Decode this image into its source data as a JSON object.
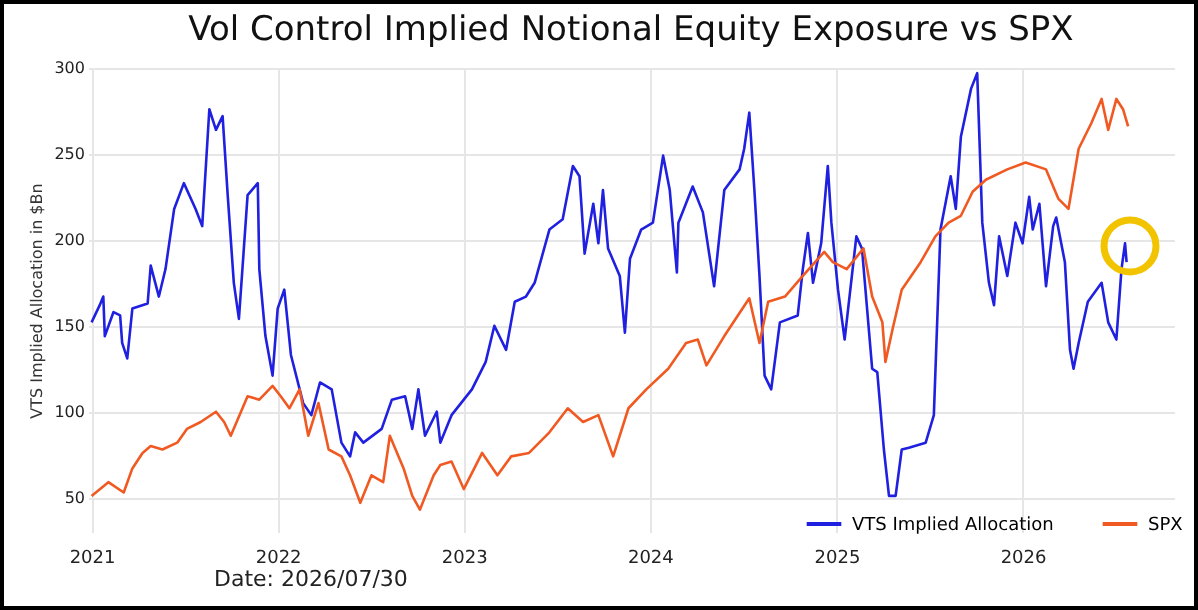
{
  "chart_data": {
    "type": "line",
    "title": "Vol Control Implied Notional Equity Exposure vs SPX",
    "ylabel": "VTS Implied Allocation in $Bn",
    "annotations": [
      "Date: 2026/07/30"
    ],
    "xlim": [
      "2020-12-25",
      "2026-10-25"
    ],
    "xticks": [
      "2021",
      "2022",
      "2023",
      "2024",
      "2025",
      "2026"
    ],
    "ylim": [
      30,
      300
    ],
    "yticks": [
      50,
      100,
      150,
      200,
      250,
      300
    ],
    "grid": true,
    "legend": "bottom right",
    "line_style": "solid",
    "marker": "none",
    "series": [
      {
        "name": "VTS Implied Allocation",
        "color": "#2020e0",
        "x": [
          "2021-01-01",
          "2021-01-17",
          "2021-01-24",
          "2021-01-27",
          "2021-02-13",
          "2021-02-26",
          "2021-03-02",
          "2021-03-12",
          "2021-03-22",
          "2021-04-21",
          "2021-04-27",
          "2021-05-13",
          "2021-05-26",
          "2021-06-12",
          "2021-07-01",
          "2021-07-24",
          "2021-08-06",
          "2021-08-20",
          "2021-09-02",
          "2021-09-15",
          "2021-09-25",
          "2021-10-07",
          "2021-10-17",
          "2021-11-03",
          "2021-11-23",
          "2021-11-26",
          "2021-12-08",
          "2021-12-22",
          "2022-01-01",
          "2022-01-14",
          "2022-01-27",
          "2022-02-20",
          "2022-03-08",
          "2022-03-25",
          "2022-04-17",
          "2022-05-06",
          "2022-05-23",
          "2022-06-02",
          "2022-06-18",
          "2022-07-24",
          "2022-08-13",
          "2022-09-08",
          "2022-09-22",
          "2022-10-04",
          "2022-10-17",
          "2022-11-09",
          "2022-11-16",
          "2022-12-08",
          "2023-01-17",
          "2023-02-13",
          "2023-03-02",
          "2023-03-25",
          "2023-04-11",
          "2023-05-03",
          "2023-05-20",
          "2023-06-18",
          "2023-07-14",
          "2023-08-03",
          "2023-08-16",
          "2023-08-26",
          "2023-09-12",
          "2023-09-22",
          "2023-10-01",
          "2023-10-11",
          "2023-11-03",
          "2023-11-13",
          "2023-11-23",
          "2023-12-15",
          "2024-01-07",
          "2024-01-27",
          "2024-02-09",
          "2024-02-23",
          "2024-02-26",
          "2024-03-25",
          "2024-04-14",
          "2024-05-06",
          "2024-05-26",
          "2024-06-25",
          "2024-07-04",
          "2024-07-14",
          "2024-07-24",
          "2024-08-03",
          "2024-08-13",
          "2024-08-26",
          "2024-09-12",
          "2024-10-17",
          "2024-10-27",
          "2024-11-06",
          "2024-11-16",
          "2024-12-02",
          "2024-12-15",
          "2024-12-22",
          "2025-01-04",
          "2025-01-17",
          "2025-02-09",
          "2025-02-20",
          "2025-03-12",
          "2025-03-22",
          "2025-04-04",
          "2025-04-14",
          "2025-04-27",
          "2025-05-09",
          "2025-05-23",
          "2025-06-25",
          "2025-07-11",
          "2025-07-24",
          "2025-08-13",
          "2025-08-23",
          "2025-09-02",
          "2025-09-22",
          "2025-10-04",
          "2025-10-14",
          "2025-10-27",
          "2025-11-06",
          "2025-11-16",
          "2025-12-02",
          "2025-12-18",
          "2026-01-01",
          "2026-01-14",
          "2026-01-21",
          "2026-02-03",
          "2026-02-16",
          "2026-03-02",
          "2026-03-08",
          "2026-03-25",
          "2026-04-04",
          "2026-04-11",
          "2026-04-21",
          "2026-05-09",
          "2026-06-05",
          "2026-06-18",
          "2026-07-04",
          "2026-07-14",
          "2026-07-21",
          "2026-07-24"
        ],
        "values": [
          152,
          162,
          167,
          144,
          158,
          156,
          140,
          131,
          160,
          163,
          185,
          167,
          183,
          218,
          233,
          218,
          208,
          276,
          264,
          272,
          226,
          175,
          154,
          226,
          233,
          183,
          144,
          121,
          160,
          171,
          133,
          105,
          98,
          117,
          113,
          82,
          74,
          88,
          82,
          90,
          107,
          109,
          90,
          113,
          86,
          100,
          82,
          98,
          113,
          129,
          150,
          136,
          164,
          167,
          175,
          206,
          212,
          243,
          237,
          192,
          221,
          198,
          229,
          195,
          179,
          146,
          189,
          206,
          210,
          249,
          229,
          181,
          210,
          231,
          216,
          173,
          229,
          241,
          253,
          274,
          229,
          179,
          121,
          113,
          152,
          156,
          183,
          204,
          175,
          198,
          243,
          210,
          171,
          142,
          202,
          195,
          125,
          123,
          78,
          51,
          51,
          78,
          79,
          82,
          98,
          206,
          237,
          218,
          260,
          288,
          297,
          210,
          175,
          162,
          202,
          179,
          210,
          198,
          225,
          206,
          221,
          173,
          208,
          213,
          187,
          136,
          125,
          140,
          164,
          175,
          152,
          142,
          183,
          198,
          187
        ]
      },
      {
        "name": "SPX",
        "color": "#f05a22",
        "x": [
          "2021-01-01",
          "2021-02-03",
          "2021-03-05",
          "2021-03-22",
          "2021-04-11",
          "2021-04-27",
          "2021-05-20",
          "2021-06-18",
          "2021-07-07",
          "2021-08-03",
          "2021-09-02",
          "2021-09-18",
          "2021-10-01",
          "2021-11-03",
          "2021-11-26",
          "2021-12-22",
          "2022-01-07",
          "2022-01-24",
          "2022-02-13",
          "2022-03-02",
          "2022-03-22",
          "2022-04-11",
          "2022-05-06",
          "2022-05-23",
          "2022-06-12",
          "2022-07-04",
          "2022-07-27",
          "2022-08-09",
          "2022-09-05",
          "2022-09-22",
          "2022-10-07",
          "2022-11-03",
          "2022-11-16",
          "2022-12-08",
          "2023-01-01",
          "2023-02-06",
          "2023-03-08",
          "2023-04-04",
          "2023-05-09",
          "2023-06-18",
          "2023-07-24",
          "2023-08-23",
          "2023-09-22",
          "2023-10-21",
          "2023-11-20",
          "2023-12-25",
          "2024-02-06",
          "2024-03-12",
          "2024-04-04",
          "2024-04-21",
          "2024-05-26",
          "2024-07-14",
          "2024-08-03",
          "2024-08-20",
          "2024-09-22",
          "2024-10-27",
          "2024-12-08",
          "2024-12-25",
          "2025-01-21",
          "2025-02-23",
          "2025-03-12",
          "2025-04-01",
          "2025-04-07",
          "2025-04-21",
          "2025-05-09",
          "2025-06-15",
          "2025-07-14",
          "2025-08-09",
          "2025-09-02",
          "2025-09-25",
          "2025-10-21",
          "2025-12-02",
          "2026-01-07",
          "2026-02-16",
          "2026-03-12",
          "2026-04-01",
          "2026-04-21",
          "2026-05-16",
          "2026-06-05",
          "2026-06-18",
          "2026-07-04",
          "2026-07-17",
          "2026-07-27"
        ],
        "values": [
          51,
          59,
          53,
          67,
          76,
          80,
          78,
          82,
          90,
          94,
          100,
          94,
          86,
          109,
          107,
          115,
          109,
          102,
          113,
          86,
          105,
          78,
          74,
          63,
          47,
          63,
          59,
          86,
          67,
          51,
          43,
          63,
          69,
          71,
          55,
          76,
          63,
          74,
          76,
          88,
          102,
          94,
          98,
          74,
          102,
          113,
          125,
          140,
          142,
          127,
          144,
          166,
          140,
          164,
          167,
          179,
          193,
          187,
          183,
          195,
          167,
          152,
          129,
          148,
          171,
          187,
          202,
          210,
          214,
          228,
          235,
          241,
          245,
          241,
          224,
          218,
          253,
          268,
          282,
          264,
          282,
          276,
          266
        ]
      }
    ]
  }
}
